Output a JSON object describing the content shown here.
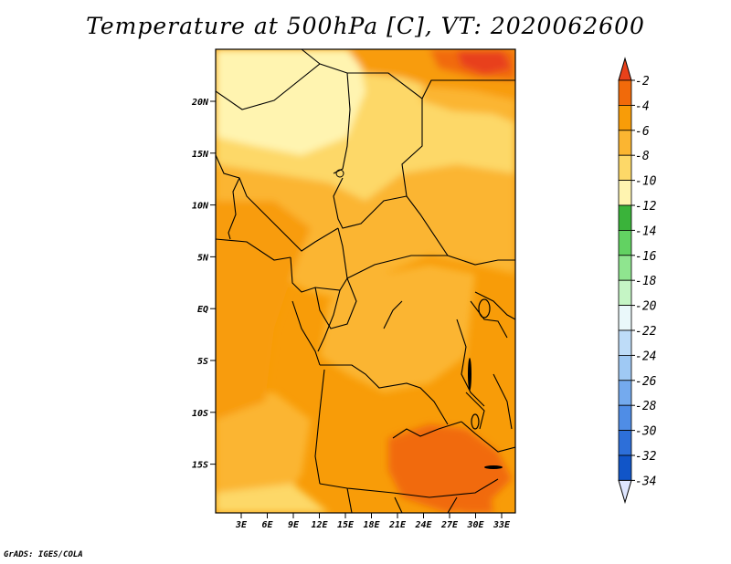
{
  "title": "Temperature at 500hPa [C], VT: 2020062600",
  "credit": "GrADS: IGES/COLA",
  "map": {
    "variable": "Temperature at 500hPa",
    "units": "C",
    "valid_time": "2020062600",
    "lat_ticks": [
      "20N",
      "15N",
      "10N",
      "5N",
      "EQ",
      "5S",
      "10S",
      "15S"
    ],
    "lon_ticks": [
      "3E",
      "6E",
      "9E",
      "12E",
      "15E",
      "18E",
      "21E",
      "24E",
      "27E",
      "30E",
      "33E"
    ]
  },
  "colorbar": {
    "levels": [
      "-2",
      "-4",
      "-6",
      "-8",
      "-10",
      "-12",
      "-14",
      "-16",
      "-18",
      "-20",
      "-22",
      "-24",
      "-26",
      "-28",
      "-30",
      "-32",
      "-34"
    ],
    "colors": [
      "#e8411a",
      "#f16a0a",
      "#f89c08",
      "#fbb531",
      "#fdd868",
      "#fff4b0",
      "#3ab33a",
      "#62d262",
      "#8fe58f",
      "#c5f5c5",
      "#eaf8fa",
      "#bedcf8",
      "#9fc9f4",
      "#74aaee",
      "#4f8de6",
      "#2d6fd9",
      "#1155c8",
      "#0b3fb2",
      "#0a1f7a"
    ],
    "top_color": "#e8411a",
    "bottom_color": "#dfe6ff"
  }
}
